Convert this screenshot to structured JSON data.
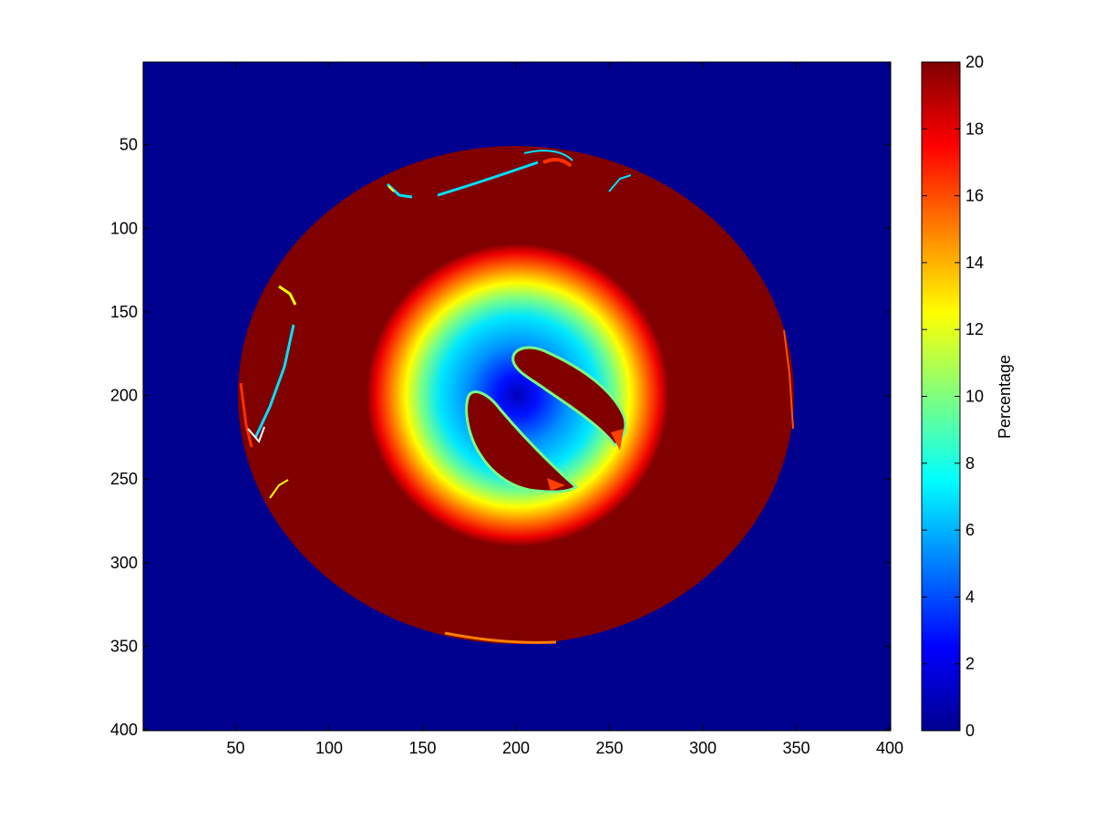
{
  "chart_data": {
    "type": "heatmap",
    "title": "",
    "xlabel": "",
    "ylabel": "",
    "colormap": "jet",
    "xlim": [
      0.5,
      400.5
    ],
    "ylim": [
      0.5,
      400.5
    ],
    "y_direction": "reversed",
    "x_ticks": [
      50,
      100,
      150,
      200,
      250,
      300,
      350,
      400
    ],
    "x_tick_labels": [
      "50",
      "100",
      "150",
      "200",
      "250",
      "300",
      "350",
      "400"
    ],
    "y_ticks": [
      50,
      100,
      150,
      200,
      250,
      300,
      350,
      400
    ],
    "y_tick_labels": [
      "50",
      "100",
      "150",
      "200",
      "250",
      "300",
      "350",
      "400"
    ],
    "colorbar": {
      "label": "Percentage",
      "range": [
        0,
        20
      ],
      "ticks": [
        0,
        2,
        4,
        6,
        8,
        10,
        12,
        14,
        16,
        18,
        20
      ],
      "tick_labels": [
        "0",
        "2",
        "4",
        "6",
        "8",
        "10",
        "12",
        "14",
        "16",
        "18",
        "20"
      ]
    },
    "regions": [
      {
        "name": "background",
        "value": 0
      },
      {
        "name": "outer disk",
        "value": 20,
        "center": [
          205,
          201
        ],
        "radii": [
          149,
          148
        ]
      },
      {
        "name": "radial gradient ring",
        "value_at_center": 0,
        "value_at_edge": 20,
        "center": [
          202,
          216
        ],
        "radius": 80
      },
      {
        "name": "inner lobe upper",
        "value": 20
      },
      {
        "name": "inner lobe lower",
        "value": 20
      }
    ]
  }
}
